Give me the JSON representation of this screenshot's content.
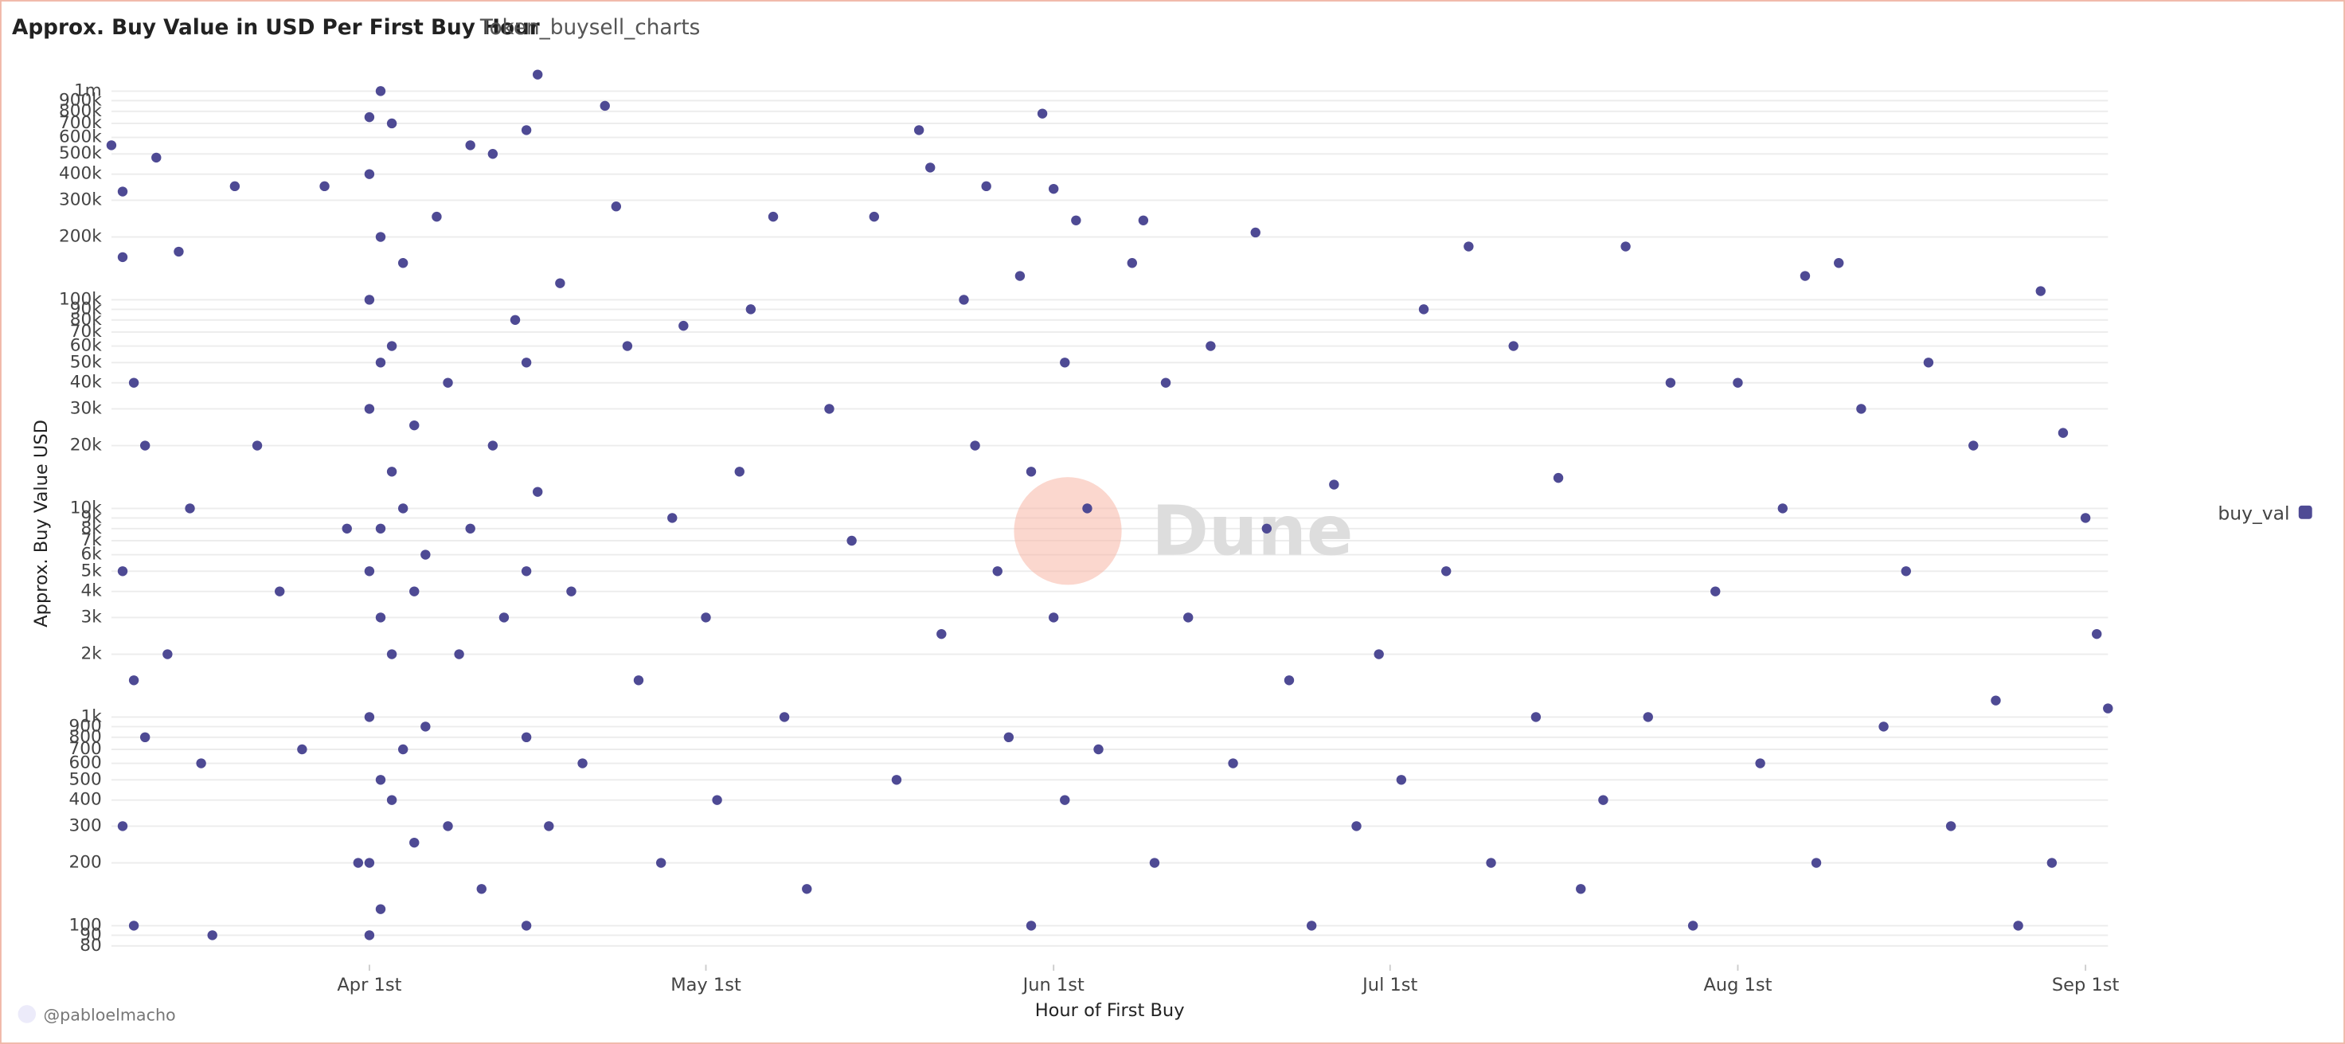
{
  "chart_data": {
    "type": "scatter",
    "title": "Approx. Buy Value in USD Per First Buy Hour",
    "subtitle": "Token_buysell_charts",
    "x_label": "Hour of First Buy",
    "y_label": "Approx. Buy Value USD",
    "watermark": "Dune",
    "footer": "@pabloelmacho",
    "log_y": true,
    "grid": true,
    "legend": "right",
    "xlim": [
      "03-09",
      "09-03"
    ],
    "xticks": [
      {
        "value": "04-01",
        "label": "Apr 1st"
      },
      {
        "value": "05-01",
        "label": "May 1st"
      },
      {
        "value": "06-01",
        "label": "Jun 1st"
      },
      {
        "value": "07-01",
        "label": "Jul 1st"
      },
      {
        "value": "08-01",
        "label": "Aug 1st"
      },
      {
        "value": "09-01",
        "label": "Sep 1st"
      }
    ],
    "ylim": [
      65,
      1300000
    ],
    "yticks": [
      80,
      90,
      100,
      200,
      300,
      400,
      500,
      600,
      700,
      800,
      900,
      {
        "value": 1000,
        "label": "1k"
      },
      {
        "value": 2000,
        "label": "2k"
      },
      {
        "value": 3000,
        "label": "3k"
      },
      {
        "value": 4000,
        "label": "4k"
      },
      {
        "value": 5000,
        "label": "5k"
      },
      {
        "value": 6000,
        "label": "6k"
      },
      {
        "value": 7000,
        "label": "7k"
      },
      {
        "value": 8000,
        "label": "8k"
      },
      {
        "value": 9000,
        "label": "9k"
      },
      {
        "value": 10000,
        "label": "10k"
      },
      {
        "value": 20000,
        "label": "20k"
      },
      {
        "value": 30000,
        "label": "30k"
      },
      {
        "value": 40000,
        "label": "40k"
      },
      {
        "value": 50000,
        "label": "50k"
      },
      {
        "value": 60000,
        "label": "60k"
      },
      {
        "value": 70000,
        "label": "70k"
      },
      {
        "value": 80000,
        "label": "80k"
      },
      {
        "value": 90000,
        "label": "90k"
      },
      {
        "value": 100000,
        "label": "100k"
      },
      {
        "value": 200000,
        "label": "200k"
      },
      {
        "value": 300000,
        "label": "300k"
      },
      {
        "value": 400000,
        "label": "400k"
      },
      {
        "value": 500000,
        "label": "500k"
      },
      {
        "value": 600000,
        "label": "600k"
      },
      {
        "value": 700000,
        "label": "700k"
      },
      {
        "value": 800000,
        "label": "800k"
      },
      {
        "value": 900000,
        "label": "900k"
      },
      {
        "value": 1000000,
        "label": "1m"
      }
    ],
    "x": [
      "03-09",
      "03-10",
      "03-10",
      "03-11",
      "03-10",
      "03-11",
      "03-10",
      "03-11",
      "03-12",
      "03-12",
      "03-13",
      "03-14",
      "03-15",
      "03-16",
      "03-17",
      "03-18",
      "03-20",
      "03-22",
      "03-24",
      "03-26",
      "03-28",
      "03-30",
      "03-31",
      "04-01",
      "04-01",
      "04-01",
      "04-01",
      "04-01",
      "04-01",
      "04-01",
      "04-01",
      "04-02",
      "04-02",
      "04-02",
      "04-02",
      "04-02",
      "04-02",
      "04-02",
      "04-03",
      "04-03",
      "04-03",
      "04-03",
      "04-03",
      "04-04",
      "04-04",
      "04-04",
      "04-05",
      "04-05",
      "04-05",
      "04-06",
      "04-06",
      "04-07",
      "04-08",
      "04-08",
      "04-09",
      "04-10",
      "04-10",
      "04-11",
      "04-12",
      "04-12",
      "04-13",
      "04-14",
      "04-15",
      "04-15",
      "04-15",
      "04-15",
      "04-15",
      "04-16",
      "04-16",
      "04-17",
      "04-18",
      "04-19",
      "04-20",
      "04-22",
      "04-23",
      "04-24",
      "04-25",
      "04-27",
      "04-28",
      "04-29",
      "05-01",
      "05-02",
      "05-04",
      "05-05",
      "05-07",
      "05-08",
      "05-10",
      "05-12",
      "05-14",
      "05-16",
      "05-18",
      "05-20",
      "05-21",
      "05-22",
      "05-24",
      "05-25",
      "05-26",
      "05-27",
      "05-28",
      "05-29",
      "05-30",
      "05-30",
      "05-31",
      "06-01",
      "06-01",
      "06-02",
      "06-02",
      "06-03",
      "06-04",
      "06-05",
      "06-08",
      "06-09",
      "06-10",
      "06-11",
      "06-13",
      "06-15",
      "06-17",
      "06-19",
      "06-20",
      "06-22",
      "06-24",
      "06-26",
      "06-28",
      "06-30",
      "07-02",
      "07-04",
      "07-06",
      "07-08",
      "07-10",
      "07-12",
      "07-14",
      "07-16",
      "07-18",
      "07-20",
      "07-22",
      "07-24",
      "07-26",
      "07-28",
      "07-30",
      "08-01",
      "08-03",
      "08-05",
      "08-07",
      "08-08",
      "08-10",
      "08-12",
      "08-14",
      "08-16",
      "08-18",
      "08-20",
      "08-22",
      "08-24",
      "08-26",
      "08-28",
      "08-29",
      "08-30",
      "09-01",
      "09-02",
      "09-03"
    ],
    "series": [
      {
        "name": "buy_val",
        "color": "#4e4a94",
        "values": [
          550000,
          330000,
          160000,
          40000,
          5000,
          1500,
          300,
          100,
          20000,
          800,
          480000,
          2000,
          170000,
          10000,
          600,
          90,
          350000,
          20000,
          4000,
          700,
          350000,
          8000,
          200,
          750000,
          400000,
          100000,
          30000,
          5000,
          1000,
          200,
          90,
          1000000,
          200000,
          50000,
          8000,
          3000,
          500,
          120,
          700000,
          60000,
          15000,
          2000,
          400,
          150000,
          10000,
          700,
          25000,
          4000,
          250,
          6000,
          900,
          250000,
          40000,
          300,
          2000,
          550000,
          8000,
          150,
          500000,
          20000,
          3000,
          80000,
          650000,
          50000,
          5000,
          800,
          100,
          1200000,
          12000,
          300,
          120000,
          4000,
          600,
          850000,
          280000,
          60000,
          1500,
          200,
          9000,
          75000,
          3000,
          400,
          15000,
          90000,
          250000,
          1000,
          150,
          30000,
          7000,
          250000,
          500,
          650000,
          430000,
          2500,
          100000,
          20000,
          350000,
          5000,
          800,
          130000,
          100,
          15000,
          780000,
          340000,
          3000,
          400,
          50000,
          240000,
          10000,
          700,
          150000,
          240000,
          200,
          40000,
          3000,
          60000,
          600,
          210000,
          8000,
          1500,
          100,
          13000,
          300,
          2000,
          500,
          90000,
          5000,
          180000,
          200,
          60000,
          1000,
          14000,
          150,
          400,
          180000,
          1000,
          40000,
          100,
          4000,
          40000,
          600,
          10000,
          130000,
          200,
          150000,
          30000,
          900,
          5000,
          50000,
          300,
          20000,
          1200,
          100,
          110000,
          200,
          23000,
          9000,
          2500,
          1100
        ]
      }
    ]
  }
}
